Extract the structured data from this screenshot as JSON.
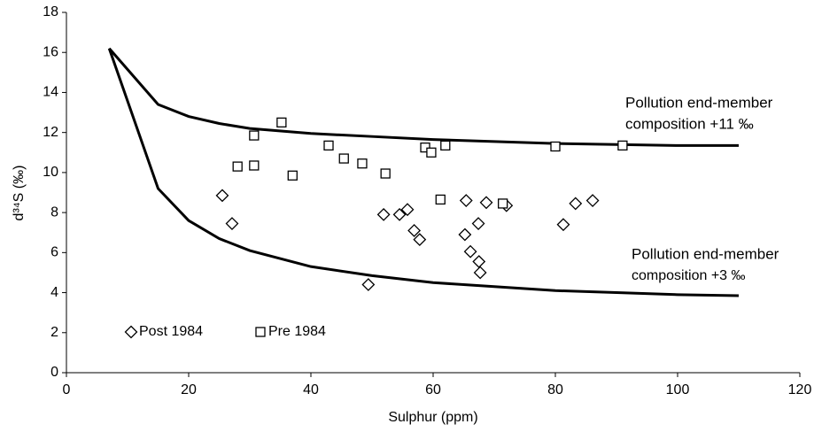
{
  "chart_data": {
    "type": "scatter",
    "x_label": "Sulphur (ppm)",
    "y_label": "d³⁴S (‰)",
    "xlim": [
      0,
      120
    ],
    "xticks": [
      0,
      20,
      40,
      60,
      80,
      100,
      120
    ],
    "ylim": [
      0,
      18
    ],
    "yticks": [
      0,
      2,
      4,
      6,
      8,
      10,
      12,
      14,
      16,
      18
    ],
    "grid": false,
    "legend": "lower left",
    "series": [
      {
        "name": "Post 1984",
        "marker": "diamond",
        "color": "#000000",
        "x": [
          25.5,
          27.1,
          49.4,
          51.9,
          54.5,
          55.8,
          56.9,
          57.8,
          65.4,
          65.2,
          66.1,
          67.4,
          67.5,
          67.7,
          68.7,
          72.0,
          81.3,
          83.3,
          86.1
        ],
        "values": [
          8.85,
          7.45,
          4.4,
          7.9,
          7.9,
          8.15,
          7.1,
          6.65,
          8.6,
          6.9,
          6.05,
          7.45,
          5.55,
          5.0,
          8.5,
          8.35,
          7.4,
          8.45,
          8.6
        ]
      },
      {
        "name": "Pre 1984",
        "marker": "square",
        "color": "#000000",
        "x": [
          35.2,
          30.7,
          30.7,
          28.0,
          37.0,
          42.9,
          45.4,
          48.4,
          52.2,
          58.7,
          59.7,
          62.0,
          61.2,
          71.4,
          80.0,
          91.0
        ],
        "values": [
          12.5,
          11.85,
          10.35,
          10.3,
          9.85,
          11.35,
          10.7,
          10.45,
          9.95,
          11.25,
          11.0,
          11.35,
          8.65,
          8.45,
          11.3,
          11.35
        ]
      }
    ],
    "curves": [
      {
        "color": "#000000",
        "x": [
          7,
          15,
          20,
          25,
          30,
          40,
          50,
          60,
          70,
          80,
          90,
          100,
          110
        ],
        "values": [
          16.2,
          13.4,
          12.8,
          12.45,
          12.2,
          11.95,
          11.8,
          11.65,
          11.55,
          11.45,
          11.4,
          11.35,
          11.35
        ]
      },
      {
        "color": "#000000",
        "x": [
          7,
          15,
          20,
          25,
          30,
          40,
          50,
          60,
          70,
          80,
          90,
          100,
          110
        ],
        "values": [
          16.2,
          9.2,
          7.6,
          6.7,
          6.1,
          5.3,
          4.85,
          4.5,
          4.3,
          4.1,
          4.0,
          3.9,
          3.85
        ]
      }
    ],
    "annotations": [
      {
        "lines": [
          "Pollution end-member",
          "composition +11 ‰"
        ]
      },
      {
        "lines": [
          "Pollution end-member",
          "composition +3 ‰"
        ]
      }
    ]
  }
}
